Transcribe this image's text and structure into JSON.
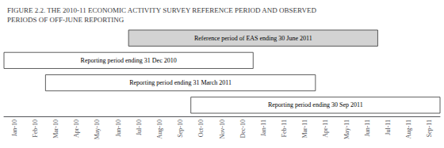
{
  "chart_data": {
    "type": "gantt",
    "title": "FIGURE 2.2. THE 2010-11 ECONOMIC ACTIVITY SURVEY REFERENCE PERIOD AND OBSERVED\nPERIODS OF OFF-JUNE REPORTING",
    "categories": [
      "Jan-10",
      "Feb-10",
      "Mar-10",
      "Apr-10",
      "May-10",
      "Jun-10",
      "Jul-10",
      "Aug-10",
      "Sep-10",
      "Oct-10",
      "Nov-10",
      "Dec-10",
      "Jan-11",
      "Feb-11",
      "Mar-11",
      "Apr-11",
      "May-11",
      "Jun-11",
      "Jul-11",
      "Aug-11",
      "Sep-11"
    ],
    "bars": [
      {
        "label": "Reference period of EAS ending 30 June 2011",
        "start": "Jul-10",
        "end": "Jun-11",
        "color": "#d3d3d3"
      },
      {
        "label": "Reporting period ending 31 Dec 2010",
        "start": "Jan-10",
        "end": "Dec-10",
        "color": "#ffffff"
      },
      {
        "label": "Reporting period ending 31 March 2011",
        "start": "Mar-10",
        "end": "Mar-11",
        "color": "#ffffff"
      },
      {
        "label": "Reporting period ending 30 Sep 2011",
        "start": "Oct-10",
        "end": "Sep-11",
        "color": "#ffffff"
      }
    ],
    "grid": false,
    "legend": false,
    "tick_labels": "x"
  }
}
